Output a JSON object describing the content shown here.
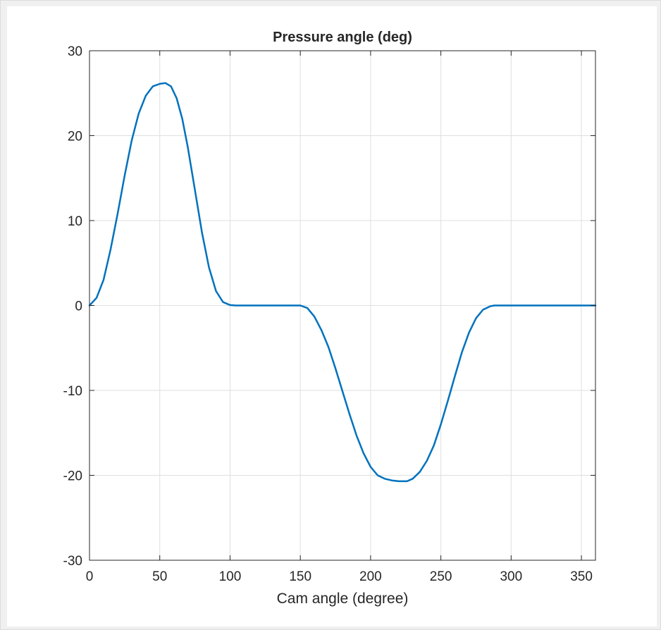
{
  "figure": {
    "background": "#f0f0f0",
    "axes_background": "#ffffff"
  },
  "chart_data": {
    "type": "line",
    "title": "Pressure angle (deg)",
    "xlabel": "Cam angle (degree)",
    "ylabel": "",
    "xlim": [
      0,
      360
    ],
    "ylim": [
      -30,
      30
    ],
    "xticks": [
      0,
      50,
      100,
      150,
      200,
      250,
      300,
      350
    ],
    "yticks": [
      -30,
      -20,
      -10,
      0,
      10,
      20,
      30
    ],
    "grid": true,
    "line_color": "#0072bd",
    "series": [
      {
        "values": [
          [
            0,
            0
          ],
          [
            5,
            0.9
          ],
          [
            10,
            3.0
          ],
          [
            15,
            6.6
          ],
          [
            20,
            10.8
          ],
          [
            25,
            15.3
          ],
          [
            30,
            19.4
          ],
          [
            35,
            22.6
          ],
          [
            40,
            24.7
          ],
          [
            45,
            25.8
          ],
          [
            50,
            26.1
          ],
          [
            54,
            26.2
          ],
          [
            58,
            25.8
          ],
          [
            62,
            24.4
          ],
          [
            66,
            22.0
          ],
          [
            70,
            18.6
          ],
          [
            75,
            13.6
          ],
          [
            80,
            8.6
          ],
          [
            85,
            4.5
          ],
          [
            90,
            1.7
          ],
          [
            95,
            0.4
          ],
          [
            100,
            0.05
          ],
          [
            104,
            0
          ],
          [
            150,
            0
          ],
          [
            155,
            -0.3
          ],
          [
            160,
            -1.3
          ],
          [
            165,
            -2.9
          ],
          [
            170,
            -4.9
          ],
          [
            175,
            -7.4
          ],
          [
            180,
            -10.1
          ],
          [
            185,
            -12.8
          ],
          [
            190,
            -15.3
          ],
          [
            195,
            -17.4
          ],
          [
            200,
            -19.0
          ],
          [
            205,
            -20.0
          ],
          [
            210,
            -20.4
          ],
          [
            215,
            -20.6
          ],
          [
            220,
            -20.7
          ],
          [
            226,
            -20.7
          ],
          [
            230,
            -20.4
          ],
          [
            235,
            -19.6
          ],
          [
            240,
            -18.3
          ],
          [
            245,
            -16.5
          ],
          [
            250,
            -14.0
          ],
          [
            255,
            -11.2
          ],
          [
            260,
            -8.3
          ],
          [
            265,
            -5.5
          ],
          [
            270,
            -3.2
          ],
          [
            275,
            -1.5
          ],
          [
            280,
            -0.5
          ],
          [
            285,
            -0.1
          ],
          [
            288,
            0
          ],
          [
            360,
            0
          ]
        ]
      }
    ]
  }
}
